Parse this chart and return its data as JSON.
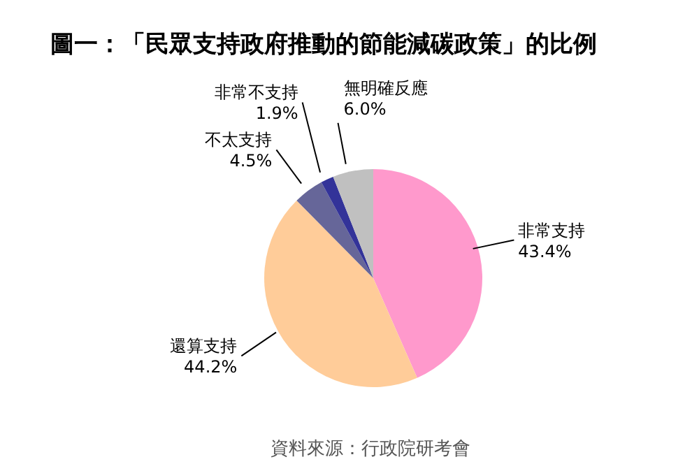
{
  "chart_data": {
    "type": "pie",
    "title": "圖一：「民眾支持政府推動的節能減碳政策」的比例",
    "categories": [
      "非常支持",
      "還算支持",
      "不太支持",
      "非常不支持",
      "無明確反應"
    ],
    "values": [
      43.4,
      44.2,
      4.5,
      1.9,
      6.0
    ],
    "value_labels": [
      "43.4%",
      "44.2%",
      "4.5%",
      "1.9%",
      "6.0%"
    ],
    "colors": [
      "#ff99cc",
      "#ffcc99",
      "#666699",
      "#333399",
      "#c0c0c0"
    ],
    "annotations": [
      "資料來源：行政院研考會"
    ],
    "legend": false
  }
}
